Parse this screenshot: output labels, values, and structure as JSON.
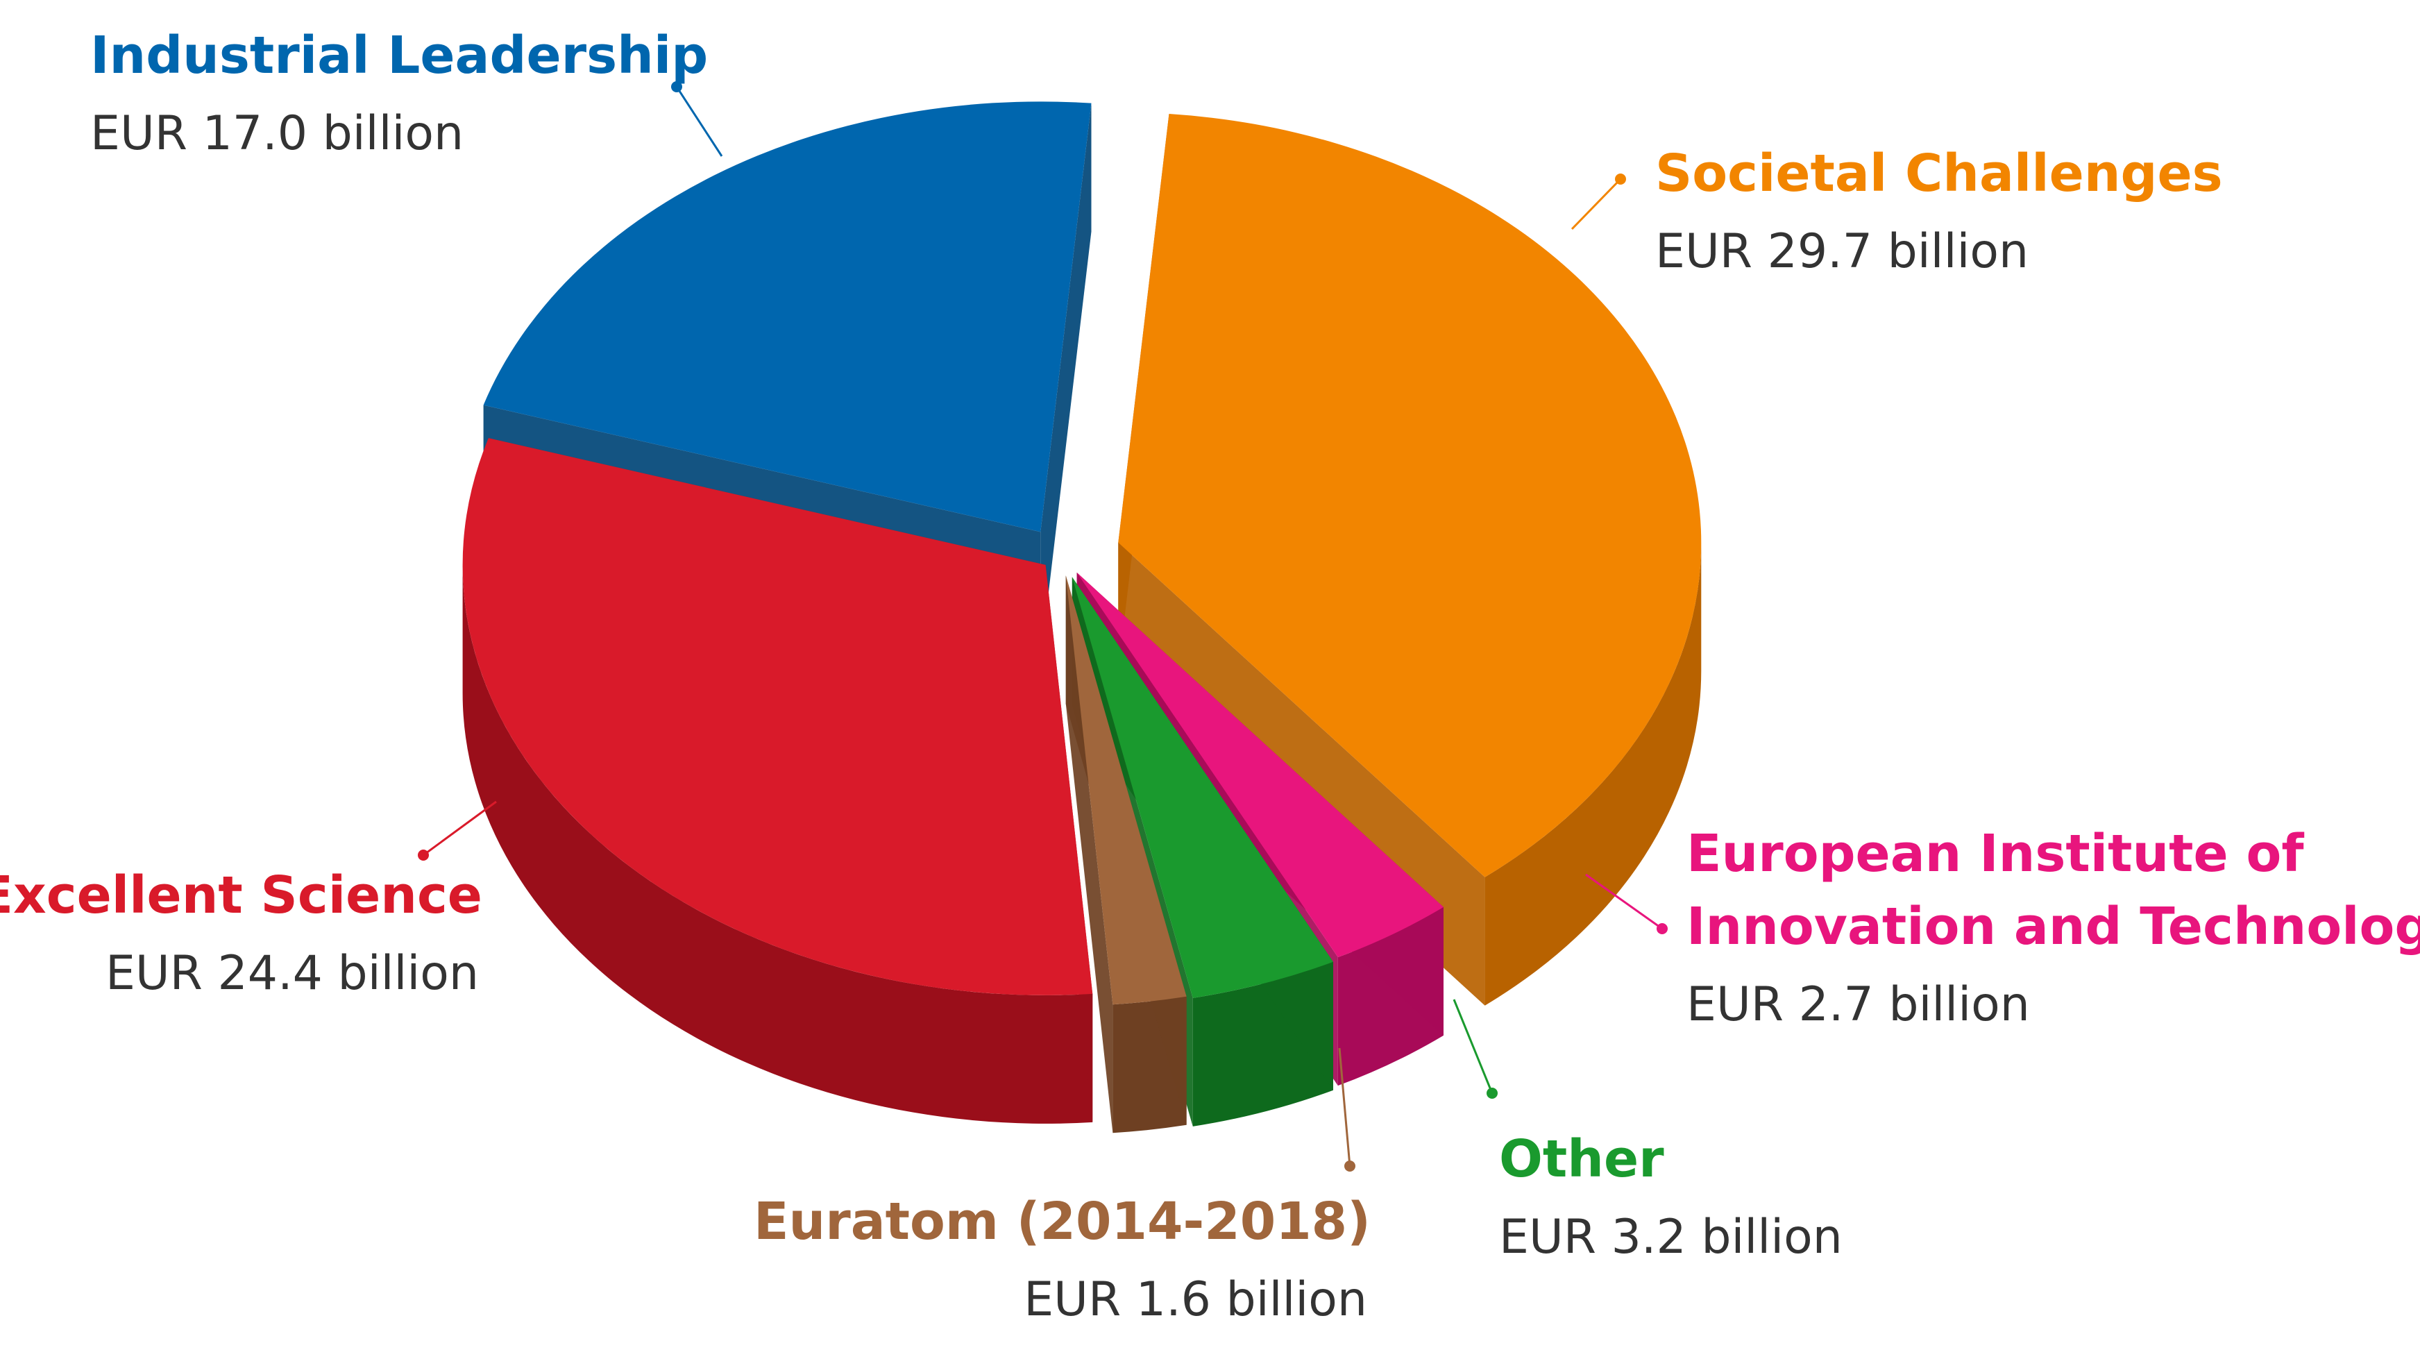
{
  "chart_data": {
    "type": "pie",
    "unit": "EUR billion",
    "slices": [
      {
        "key": "societal",
        "label_lines": [
          "Societal Challenges"
        ],
        "value": 29.7,
        "value_label": "EUR 29.7 billion",
        "color": "#F28500",
        "side_color": "#B86200",
        "label_color": "#F28500"
      },
      {
        "key": "eit",
        "label_lines": [
          "European Institute of",
          "Innovation and Technology"
        ],
        "value": 2.7,
        "value_label": "EUR 2.7 billion",
        "color": "#E8157D",
        "side_color": "#A80A58",
        "label_color": "#E8157D"
      },
      {
        "key": "other",
        "label_lines": [
          "Other"
        ],
        "value": 3.2,
        "value_label": "EUR 3.2 billion",
        "color": "#1A9A2E",
        "side_color": "#0E6A1D",
        "label_color": "#1A9A2E"
      },
      {
        "key": "euratom",
        "label_lines": [
          "Euratom (2014-2018)"
        ],
        "value": 1.6,
        "value_label": "EUR 1.6 billion",
        "color": "#A0663C",
        "side_color": "#6E4022",
        "label_color": "#A0663C"
      },
      {
        "key": "excellent",
        "label_lines": [
          "Excellent Science"
        ],
        "value": 24.4,
        "value_label": "EUR 24.4 billion",
        "color": "#D91A2A",
        "side_color": "#9A0E1A",
        "label_color": "#D91A2A"
      },
      {
        "key": "industrial",
        "label_lines": [
          "Industrial Leadership"
        ],
        "value": 17.0,
        "value_label": "EUR 17.0 billion",
        "color": "#0066AE",
        "side_color": "#004577",
        "label_color": "#0066AE"
      }
    ]
  }
}
